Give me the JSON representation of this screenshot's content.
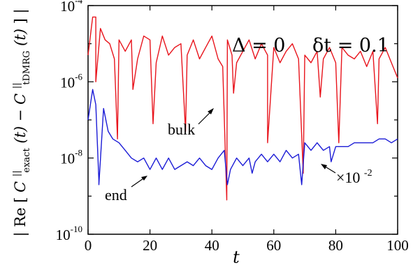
{
  "chart_data": {
    "type": "line",
    "x_label": "t",
    "y_label": {
      "prefix": "Re",
      "left_main": "C",
      "left_sup": "||",
      "left_sub": "exact",
      "left_arg": "(t) − ",
      "right_main": "C",
      "right_sup": "||",
      "right_sub": "tDMRG",
      "right_arg": "(t)"
    },
    "xlim": [
      0,
      100
    ],
    "ylim_log10": [
      -10,
      -4
    ],
    "y_scale": "log",
    "x_ticks": [
      "0",
      "20",
      "40",
      "60",
      "80",
      "100"
    ],
    "y_ticks": [
      {
        "base": "10",
        "exp": "-10"
      },
      {
        "base": "10",
        "exp": "-8"
      },
      {
        "base": "10",
        "exp": "-6"
      },
      {
        "base": "10",
        "exp": "-4"
      }
    ],
    "params": {
      "delta": "Δ = 0",
      "dt": "δt = 0.1"
    },
    "annotations": {
      "bulk": "bulk",
      "end": "end",
      "scale_base": "×10",
      "scale_exp": "-2"
    },
    "series_colors": {
      "bulk": "#e8141c",
      "end": "#1b1bd6"
    },
    "series": [
      {
        "key": "bulk",
        "x": [
          0.0,
          1.5,
          2.5,
          4.0,
          5.5,
          7.0,
          8.5,
          10.0,
          12.0,
          14.0,
          16.0,
          18.0,
          20.0,
          22.0,
          24.0,
          26.0,
          28.0,
          30.0,
          32.0,
          34.0,
          36.0,
          38.0,
          40.0,
          42.0,
          43.5,
          45.0,
          46.5,
          48.0,
          50.0,
          52.0,
          54.0,
          56.0,
          58.0,
          60.0,
          62.0,
          64.0,
          66.0,
          68.0,
          70.0,
          72.0,
          74.0,
          76.0,
          78.0,
          80.0,
          82.0,
          84.0,
          86.0,
          88.0,
          90.0,
          92.0,
          94.0,
          96.0,
          98.0,
          100.0
        ],
        "y_log10": [
          -5.3,
          -4.3,
          -4.3,
          -4.6,
          -4.9,
          -5.0,
          -5.4,
          -4.9,
          -5.2,
          -4.9,
          -5.4,
          -4.8,
          -4.9,
          -5.5,
          -4.8,
          -5.3,
          -5.1,
          -5.0,
          -5.3,
          -4.9,
          -5.4,
          -5.1,
          -4.8,
          -5.4,
          -5.6,
          -4.9,
          -5.3,
          -5.5,
          -5.2,
          -4.9,
          -5.4,
          -5.0,
          -5.3,
          -5.1,
          -5.5,
          -5.2,
          -5.0,
          -5.4,
          -5.3,
          -5.5,
          -5.2,
          -5.4,
          -5.1,
          -5.5,
          -5.1,
          -5.3,
          -5.4,
          -5.2,
          -5.6,
          -5.2,
          -5.4,
          -5.1,
          -5.5,
          -5.9
        ]
      },
      {
        "key": "end",
        "x": [
          0.0,
          1.5,
          2.5,
          3.5,
          5.0,
          6.5,
          8.0,
          10.0,
          12.0,
          14.0,
          16.0,
          18.0,
          20.0,
          22.0,
          24.0,
          26.0,
          28.0,
          30.0,
          32.0,
          34.0,
          36.0,
          38.0,
          40.0,
          42.0,
          44.0,
          46.0,
          48.0,
          50.0,
          52.0,
          54.0,
          56.0,
          58.0,
          60.0,
          62.0,
          64.0,
          66.0,
          68.0,
          70.0,
          72.0,
          74.0,
          76.0,
          78.0,
          80.0,
          82.0,
          84.0,
          86.0,
          88.0,
          90.0,
          92.0,
          94.0,
          96.0,
          98.0,
          100.0
        ],
        "y_log10": [
          -7.0,
          -6.2,
          -6.6,
          -8.6,
          -6.7,
          -7.3,
          -7.5,
          -7.6,
          -7.8,
          -8.0,
          -8.1,
          -8.0,
          -8.3,
          -8.0,
          -8.3,
          -8.0,
          -8.3,
          -8.2,
          -8.1,
          -8.2,
          -8.0,
          -8.2,
          -8.3,
          -8.0,
          -7.8,
          -8.3,
          -8.0,
          -8.2,
          -8.0,
          -8.1,
          -7.9,
          -8.1,
          -7.9,
          -8.1,
          -7.8,
          -8.0,
          -7.9,
          -7.6,
          -7.8,
          -7.6,
          -7.8,
          -7.7,
          -7.7,
          -7.7,
          -7.7,
          -7.6,
          -7.6,
          -7.6,
          -7.6,
          -7.5,
          -7.5,
          -7.6,
          -7.5
        ]
      }
    ],
    "dips": {
      "bulk": [
        {
          "x": 2.5,
          "y_log10": -6.0
        },
        {
          "x": 9.5,
          "y_log10": -7.5
        },
        {
          "x": 14.5,
          "y_log10": -6.2
        },
        {
          "x": 21.0,
          "y_log10": -7.1
        },
        {
          "x": 31.5,
          "y_log10": -7.3
        },
        {
          "x": 44.8,
          "y_log10": -9.1
        },
        {
          "x": 47.0,
          "y_log10": -6.3
        },
        {
          "x": 58.0,
          "y_log10": -7.6
        },
        {
          "x": 69.5,
          "y_log10": -8.4
        },
        {
          "x": 75.0,
          "y_log10": -6.4
        },
        {
          "x": 81.0,
          "y_log10": -7.6
        },
        {
          "x": 93.5,
          "y_log10": -7.1
        }
      ],
      "end": [
        {
          "x": 3.5,
          "y_log10": -8.7
        },
        {
          "x": 45.0,
          "y_log10": -8.7
        },
        {
          "x": 53.0,
          "y_log10": -8.4
        },
        {
          "x": 69.0,
          "y_log10": -8.7
        },
        {
          "x": 78.5,
          "y_log10": -8.1
        }
      ]
    }
  }
}
